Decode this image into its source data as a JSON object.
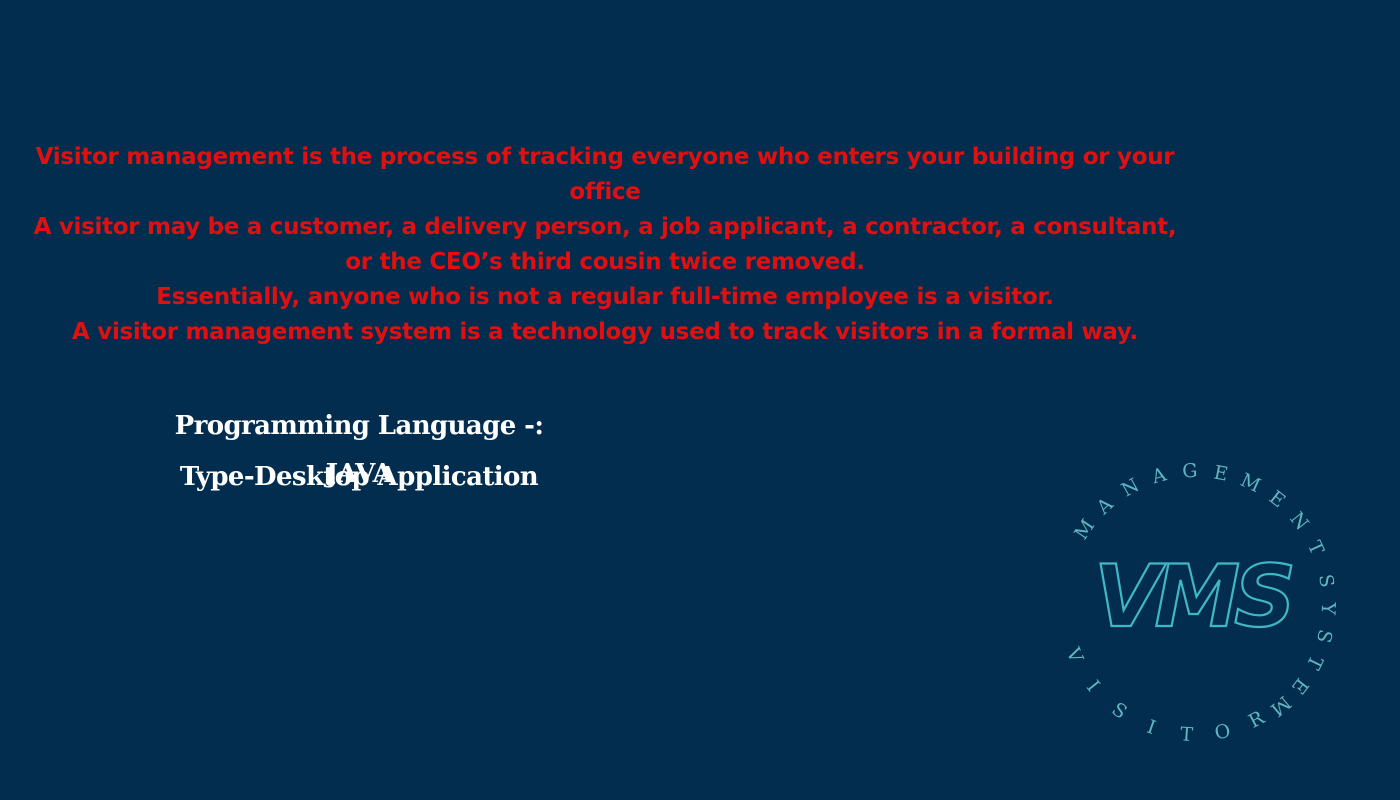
{
  "intro": {
    "paragraphs": [
      "Visitor management is the process of tracking everyone who enters your building or your office",
      "A visitor may be a customer, a delivery person, a job applicant, a contractor, a consultant, or the CEO’s third cousin twice removed.",
      "Essentially, anyone who is not a regular full-time employee is a visitor.",
      "A visitor management system is a technology used to track visitors in a formal way."
    ]
  },
  "info": {
    "language": "Programming Language -: JAVA",
    "type": "Type-Desktop Application"
  },
  "logo": {
    "monogram": "VMS",
    "ring_text": "VISITOR MANAGEMENT SYSTEM",
    "colors": {
      "monogram": "#3fb8c6",
      "ring_text": "#5fb5c0"
    }
  },
  "colors": {
    "background": "#032d4e",
    "intro_text": "#e01010",
    "info_text": "#ffffff"
  }
}
